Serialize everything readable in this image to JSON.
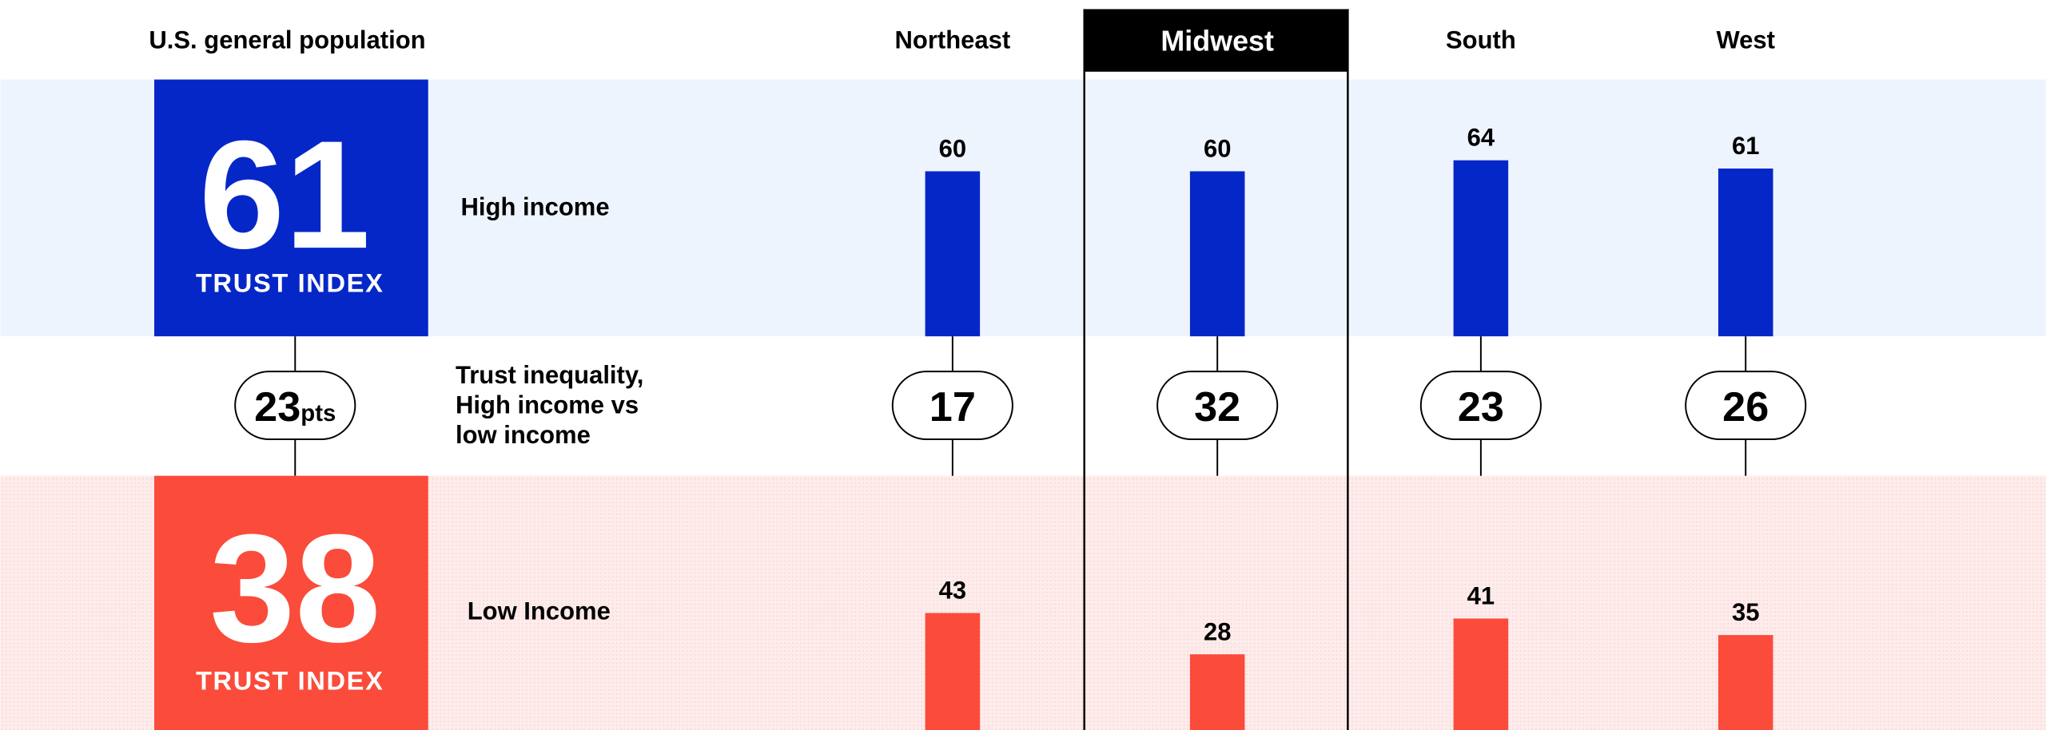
{
  "chart_data": {
    "type": "bar",
    "overall": {
      "title": "U.S. general population",
      "high": 61,
      "low": 38,
      "index_label": "TRUST INDEX",
      "gap": 23,
      "gap_unit": "pts"
    },
    "gap_label": [
      "Trust inequality,",
      "High income vs",
      "low income"
    ],
    "categories": [
      "Northeast",
      "Midwest",
      "South",
      "West"
    ],
    "highlight": "Midwest",
    "series": [
      {
        "name": "High income",
        "color": "#0527c8",
        "values": [
          60,
          60,
          64,
          61
        ]
      },
      {
        "name": "Low Income",
        "color": "#fb4b3a",
        "values": [
          43,
          28,
          41,
          35
        ]
      }
    ],
    "gaps": [
      17,
      32,
      23,
      26
    ]
  }
}
